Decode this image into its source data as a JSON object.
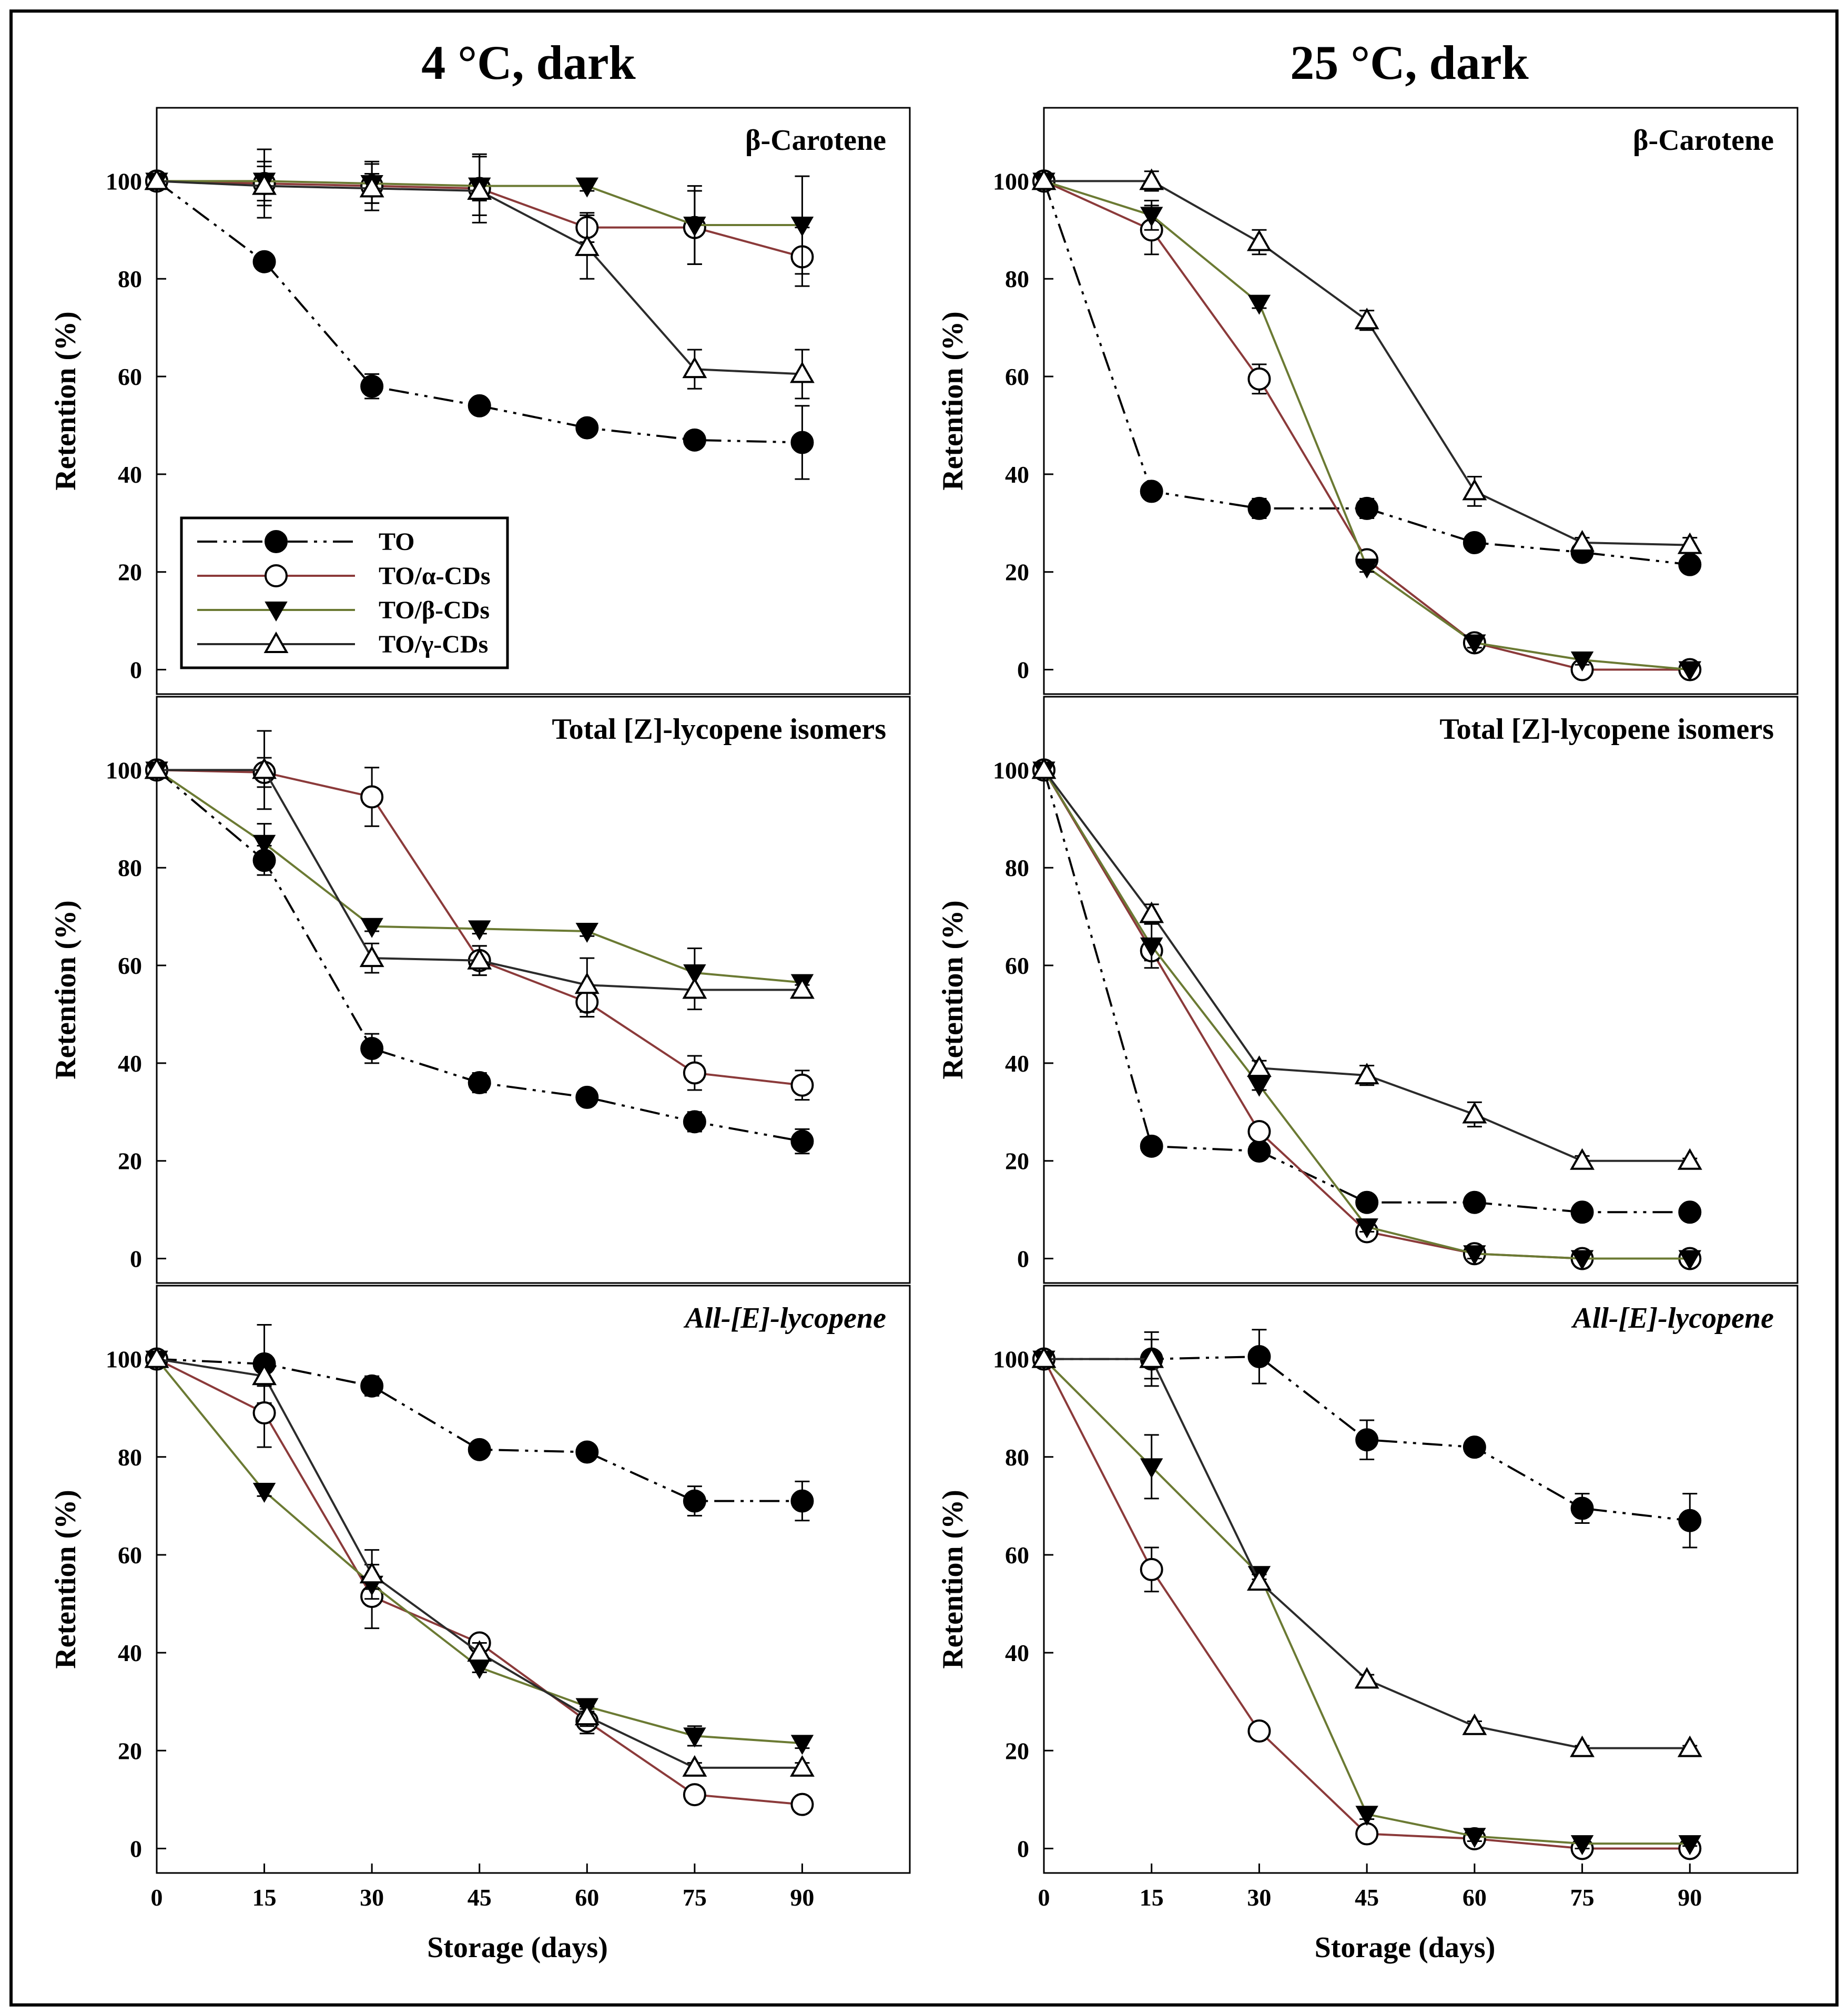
{
  "chart_data": {
    "type": "line",
    "columns": [
      {
        "title": "4 °C, dark"
      },
      {
        "title": "25 °C, dark"
      }
    ],
    "xlabel": "Storage (days)",
    "ylabel": "Retention (%)",
    "x": [
      0,
      15,
      30,
      45,
      60,
      75,
      90
    ],
    "x_ticks": [
      "0",
      "15",
      "30",
      "45",
      "60",
      "75",
      "90"
    ],
    "y_ticks": [
      "0",
      "20",
      "40",
      "60",
      "80",
      "100"
    ],
    "xlim": [
      0,
      105
    ],
    "ylim": [
      -5,
      115
    ],
    "legend": [
      {
        "name": "TO",
        "color": "#000000",
        "marker": "filled-circle",
        "dash": "dashdotdot"
      },
      {
        "name": "TO/α-CDs",
        "color": "#8b3a3a",
        "marker": "open-circle",
        "dash": "solid"
      },
      {
        "name": "TO/β-CDs",
        "color": "#6b7a33",
        "marker": "filled-triangle-down",
        "dash": "solid"
      },
      {
        "name": "TO/γ-CDs",
        "color": "#2b2b2b",
        "marker": "open-triangle-up",
        "dash": "solid"
      }
    ],
    "panels": [
      {
        "row": 0,
        "col": 0,
        "title": "β-Carotene",
        "title_italic": false,
        "series": [
          {
            "name": "TO",
            "values": [
              100,
              83.5,
              58,
              54,
              49.5,
              47,
              46.5
            ],
            "errors": [
              0,
              1.5,
              2.5,
              1,
              1.5,
              1,
              7.5
            ]
          },
          {
            "name": "TO/α-CDs",
            "values": [
              100,
              99.5,
              99,
              98.5,
              90.5,
              90.5,
              84.5
            ],
            "errors": [
              0,
              7,
              5,
              7,
              3,
              7.5,
              6
            ]
          },
          {
            "name": "TO/β-CDs",
            "values": [
              100,
              100,
              99.5,
              99,
              99,
              91,
              91
            ],
            "errors": [
              0,
              4,
              4,
              6,
              1,
              8,
              10
            ]
          },
          {
            "name": "TO/γ-CDs",
            "values": [
              100,
              99,
              98.5,
              98,
              86.5,
              61.5,
              60.5
            ],
            "errors": [
              0,
              4,
              3,
              2,
              6.5,
              4,
              5
            ]
          }
        ]
      },
      {
        "row": 0,
        "col": 1,
        "title": "β-Carotene",
        "title_italic": false,
        "series": [
          {
            "name": "TO",
            "values": [
              100,
              36.5,
              33,
              33,
              26,
              24,
              21.5
            ],
            "errors": [
              0,
              1.5,
              2,
              2,
              1,
              1,
              1
            ]
          },
          {
            "name": "TO/α-CDs",
            "values": [
              100,
              90,
              59.5,
              22.5,
              5.5,
              0,
              0
            ],
            "errors": [
              0,
              5,
              3,
              1,
              1,
              0,
              0
            ]
          },
          {
            "name": "TO/β-CDs",
            "values": [
              100,
              93,
              75,
              21,
              5.5,
              2,
              0
            ],
            "errors": [
              0,
              3,
              1,
              1,
              1,
              1,
              0
            ]
          },
          {
            "name": "TO/γ-CDs",
            "values": [
              100,
              100,
              87.5,
              71.5,
              36.5,
              26,
              25.5
            ],
            "errors": [
              0,
              2,
              2.5,
              2,
              3,
              1,
              1.5
            ]
          }
        ]
      },
      {
        "row": 1,
        "col": 0,
        "title": "Total [Z]-lycopene isomers",
        "title_italic": false,
        "series": [
          {
            "name": "TO",
            "values": [
              100,
              81.5,
              43,
              36,
              33,
              28,
              24
            ],
            "errors": [
              0,
              3,
              3,
              2,
              1,
              2,
              2.5
            ]
          },
          {
            "name": "TO/α-CDs",
            "values": [
              100,
              99.5,
              94.5,
              61,
              52.5,
              38,
              35.5
            ],
            "errors": [
              0,
              3,
              6,
              3,
              3,
              3.5,
              3
            ]
          },
          {
            "name": "TO/β-CDs",
            "values": [
              100,
              85,
              68,
              67.5,
              67,
              58.5,
              56.5
            ],
            "errors": [
              0,
              4,
              1,
              1,
              1,
              5,
              1.5
            ]
          },
          {
            "name": "TO/γ-CDs",
            "values": [
              100,
              100,
              61.5,
              61,
              56,
              55,
              55
            ],
            "errors": [
              0,
              8,
              3,
              3,
              5.5,
              4,
              1
            ]
          }
        ]
      },
      {
        "row": 1,
        "col": 1,
        "title": "Total [Z]-lycopene isomers",
        "title_italic": false,
        "series": [
          {
            "name": "TO",
            "values": [
              100,
              23,
              22,
              11.5,
              11.5,
              9.5,
              9.5
            ],
            "errors": [
              0,
              1.5,
              1,
              1,
              1,
              1,
              1
            ]
          },
          {
            "name": "TO/α-CDs",
            "values": [
              100,
              63,
              26,
              5.5,
              1,
              0,
              0
            ],
            "errors": [
              0,
              2,
              1,
              1,
              1,
              0,
              0
            ]
          },
          {
            "name": "TO/β-CDs",
            "values": [
              100,
              64,
              35.5,
              6.5,
              1,
              0,
              0
            ],
            "errors": [
              0,
              4.5,
              1,
              1,
              1,
              0,
              0
            ]
          },
          {
            "name": "TO/γ-CDs",
            "values": [
              100,
              70.5,
              39,
              37.5,
              29.5,
              20,
              20
            ],
            "errors": [
              0,
              2,
              1.5,
              2,
              2.5,
              1,
              0.5
            ]
          }
        ]
      },
      {
        "row": 2,
        "col": 0,
        "title": "All-[E]-lycopene",
        "title_italic": true,
        "series": [
          {
            "name": "TO",
            "values": [
              100,
              99,
              94.5,
              81.5,
              81,
              71,
              71
            ],
            "errors": [
              0,
              8,
              2,
              1,
              1,
              3,
              4
            ]
          },
          {
            "name": "TO/α-CDs",
            "values": [
              100,
              89,
              51.5,
              42,
              26,
              11,
              9
            ],
            "errors": [
              0,
              7,
              6.5,
              1.5,
              2.5,
              1,
              1
            ]
          },
          {
            "name": "TO/β-CDs",
            "values": [
              100,
              73,
              54,
              37,
              29,
              23,
              21.5
            ],
            "errors": [
              0,
              1,
              1,
              1,
              1,
              2,
              1
            ]
          },
          {
            "name": "TO/γ-CDs",
            "values": [
              100,
              96.5,
              56,
              40,
              27,
              16.5,
              16.5
            ],
            "errors": [
              0,
              2,
              5,
              2,
              2,
              1,
              1
            ]
          }
        ]
      },
      {
        "row": 2,
        "col": 1,
        "title": "All-[E]-lycopene",
        "title_italic": true,
        "series": [
          {
            "name": "TO",
            "values": [
              100,
              100,
              100.5,
              83.5,
              82,
              69.5,
              67
            ],
            "errors": [
              0,
              4,
              5.5,
              4,
              1.5,
              3,
              5.5
            ]
          },
          {
            "name": "TO/α-CDs",
            "values": [
              100,
              57,
              24,
              3,
              2,
              0,
              0
            ],
            "errors": [
              0,
              4.5,
              1,
              1,
              1,
              0,
              0
            ]
          },
          {
            "name": "TO/β-CDs",
            "values": [
              100,
              78,
              56,
              7,
              2.5,
              1,
              1
            ],
            "errors": [
              0,
              6.5,
              1,
              1,
              1,
              1,
              0.5
            ]
          },
          {
            "name": "TO/γ-CDs",
            "values": [
              100,
              100,
              54.5,
              34.5,
              25,
              20.5,
              20.5
            ],
            "errors": [
              0,
              5.5,
              1.5,
              1,
              1,
              0.5,
              0.5
            ]
          }
        ]
      }
    ]
  }
}
